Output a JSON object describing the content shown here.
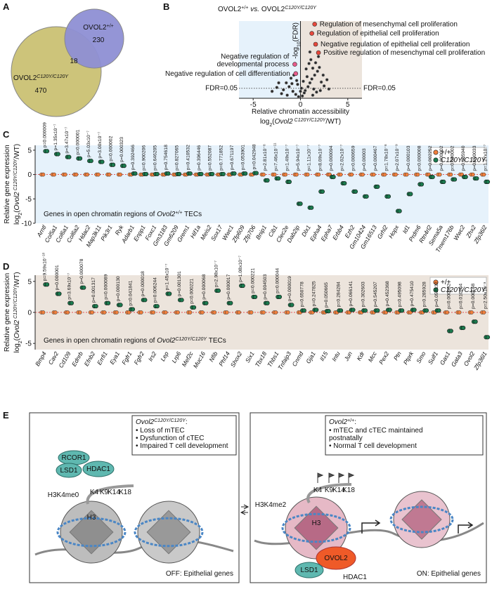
{
  "panel_labels": [
    "A",
    "B",
    "C",
    "D",
    "E"
  ],
  "venn": {
    "sets": [
      {
        "name": [
          "OVOL2",
          {
            "sup": "+/+"
          }
        ],
        "count": 230,
        "color": "#8e8fd4"
      },
      {
        "name": [
          "OVOL2",
          {
            "isup": "C120Y/C120Y"
          }
        ],
        "count": 470,
        "color": "#cdc47a"
      }
    ],
    "overlap": 18
  },
  "volcano": {
    "title": [
      "OVOL2",
      {
        "sup": "+/+"
      },
      " ",
      {
        "i": "vs."
      },
      " OVOL2",
      {
        "isup": "C120Y/C120Y"
      }
    ],
    "y_label": [
      "-log",
      {
        "sub": "10"
      },
      "(FDR)"
    ],
    "x_label": "Relative chromatin accessibility",
    "x_label2": [
      "log",
      {
        "sub": "2"
      },
      "(",
      {
        "i": "Ovol2"
      },
      {
        "isup": " C120Y/C120Y"
      },
      "/WT)"
    ],
    "xlim": [
      -6.5,
      6.5
    ],
    "ylim": [
      0,
      10
    ],
    "xticks": [
      -5,
      0,
      5
    ],
    "threshold": 1.3,
    "threshold_label": "FDR=0.05",
    "points": [
      [
        -0.5,
        0.5
      ],
      [
        0.2,
        0.3
      ],
      [
        0.5,
        1.0
      ],
      [
        0.8,
        1.5
      ],
      [
        1.0,
        2.0
      ],
      [
        1.2,
        2.5
      ],
      [
        1.5,
        3.0
      ],
      [
        1.8,
        3.5
      ],
      [
        2.0,
        4.0
      ],
      [
        0.9,
        4.5
      ],
      [
        1.1,
        5.0
      ],
      [
        0.6,
        3.8
      ],
      [
        1.4,
        1.2
      ],
      [
        2.2,
        2.1
      ],
      [
        2.5,
        1.6
      ],
      [
        1.7,
        0.8
      ],
      [
        -0.8,
        0.9
      ],
      [
        -1.2,
        1.5
      ],
      [
        -1.5,
        2.0
      ],
      [
        -1.0,
        2.6
      ],
      [
        -0.7,
        3.0
      ],
      [
        -1.8,
        1.1
      ],
      [
        -2.0,
        0.6
      ],
      [
        -2.5,
        1.4
      ],
      [
        -3.0,
        0.9
      ],
      [
        -0.3,
        1.8
      ],
      [
        0.3,
        2.2
      ],
      [
        0.7,
        2.8
      ],
      [
        1.3,
        3.9
      ],
      [
        1.6,
        4.6
      ],
      [
        2.4,
        3.0
      ],
      [
        2.8,
        2.4
      ],
      [
        3.0,
        1.2
      ],
      [
        -0.4,
        2.3
      ],
      [
        -1.4,
        0.4
      ],
      [
        0.1,
        1.3
      ],
      [
        1.9,
        5.4
      ],
      [
        1.0,
        6.0
      ],
      [
        0.4,
        0.7
      ],
      [
        2.1,
        1.0
      ],
      [
        -2.3,
        2.0
      ],
      [
        -0.9,
        1.9
      ],
      [
        0.0,
        0.9
      ],
      [
        1.3,
        0.4
      ],
      [
        -0.2,
        0.2
      ]
    ],
    "highlights": [
      {
        "x": 1.5,
        "y": 9.6,
        "label": [
          "Regulation of mesenchymal cell proliferation"
        ],
        "color": "#e8483b"
      },
      {
        "x": 1.2,
        "y": 8.4,
        "label": [
          "Regulation of epithelial cell proliferation"
        ],
        "color": "#e8483b"
      },
      {
        "x": 1.6,
        "y": 7.0,
        "label": [
          "Negative regulation of epithelial cell proliferation"
        ],
        "color": "#e8483b"
      },
      {
        "x": 1.9,
        "y": 5.9,
        "label": [
          "Positive regulation of mesenchymal cell proliferation"
        ],
        "color": "#e8483b"
      },
      {
        "x": -0.6,
        "y": 4.4,
        "label": [
          "Negative regulation of",
          "developmental process"
        ],
        "color": "#e85a8a"
      },
      {
        "x": -0.5,
        "y": 3.2,
        "label": [
          "Negative regulation of cell differentiation"
        ],
        "color": "#e85a8a"
      }
    ]
  },
  "panel_c": {
    "ylim": [
      -10,
      6
    ],
    "yticks": [
      5,
      0,
      -5,
      -10
    ],
    "background": "#e6f2fb",
    "y_label": "Relative gene expression",
    "y_label2": [
      "log",
      {
        "sub": "2"
      },
      "(",
      {
        "i": "Ovol2"
      },
      {
        "isup": " C120Y/C120Y"
      },
      "/WT)"
    ],
    "legend": [
      {
        "label": [
          "+/+"
        ],
        "color": "#f07f3c"
      },
      {
        "label": [
          {
            "i": "C120Y/C120Y"
          }
        ],
        "color": "#1b7a4e"
      }
    ],
    "note": [
      "Genes in open chromatin regions of ",
      {
        "i": "Ovol2"
      },
      {
        "isup": "+/+"
      },
      " TECs"
    ],
    "groups": [
      {
        "color": "#e0242b",
        "genes": [
          "Arntl",
          "Col5a1",
          "Col6a1",
          "Col6a2",
          "Hdac2",
          "Map3k11",
          "Pik3r1",
          "Ryk"
        ],
        "wt": [
          0,
          0,
          0,
          0,
          0,
          0,
          0,
          0
        ],
        "mut": [
          4.8,
          4.2,
          3.6,
          3.3,
          2.8,
          2.6,
          2.0,
          1.8
        ],
        "p": [
          "p=0.000009",
          "p=1.35x10⁻⁷",
          "p=3.47x10⁻⁷",
          "p=0.000001",
          "p=5.03x10⁻⁷",
          "p=3.00x10⁻⁷",
          "p=0.000002",
          "p=0.000323"
        ]
      },
      {
        "color": "#111111",
        "genes": [
          "Adarb1",
          "Enpp1",
          "Foxc1",
          "Gm3183",
          "Gm6209",
          "Grem1",
          "Hif1a",
          "Meis2",
          "Sox17",
          "Wwc1",
          "Zfp609",
          "Zfp706"
        ],
        "wt": [
          0,
          0,
          0,
          0,
          0,
          0,
          0,
          0,
          0,
          0,
          0,
          0
        ],
        "mut": [
          0.2,
          0.1,
          0.1,
          0.2,
          0.1,
          0.2,
          0.1,
          0.1,
          0.1,
          0.2,
          0.2,
          0.3
        ],
        "p": [
          "p=0.392466",
          "p=0.900206",
          "p=0.646205",
          "p=0.754618",
          "p=0.827065",
          "p=0.410532",
          "p=0.396446",
          "p=0.552087",
          "p=0.771852",
          "p=0.671197",
          "p=0.053901",
          "p=0.042948"
        ]
      },
      {
        "color": "#1b7a4e",
        "genes": [
          "Bnip1",
          "Cib1",
          "Clec2e",
          "Dab2ip",
          "Dlx1",
          "Epha4",
          "Epha7",
          "Erbb4",
          "Ezh2",
          "Gm10424",
          "Gm16513",
          "Grhl2",
          "Hopx",
          "Id1",
          "Prdm6",
          "Rtn4rl2",
          "Sema5a",
          "Tmem176b",
          "Wwc2",
          "Zhx2",
          "Zfp36l2"
        ],
        "wt": [
          0,
          0,
          0,
          0,
          0,
          0,
          0,
          0,
          0,
          0,
          0,
          0,
          0,
          0,
          0,
          0,
          0,
          0,
          0,
          0,
          0
        ],
        "mut": [
          -1.2,
          -0.8,
          -1.5,
          -6.0,
          -6.8,
          -3.5,
          -0.5,
          -1.8,
          -3.5,
          -4.5,
          -2.5,
          -4.5,
          -7.5,
          -4.0,
          -2.0,
          -0.5,
          -1.5,
          -1.0,
          -0.5,
          -0.8,
          -1.5
        ],
        "p": [
          "p=2.81x10⁻⁸",
          "p=7.46x10⁻¹¹",
          "p=1.49x10⁻⁷",
          "p=5.94x10⁻⁷",
          "p=1.11x10⁻⁷",
          "p=8.09x10⁻⁷",
          "p=0.000094",
          "p=2.02x10⁻⁷",
          "p=0.000659",
          "p=0.00003",
          "p=0.000467",
          "p=1.78x10⁻⁸",
          "p=2.07x10⁻⁹",
          "p=0.000103",
          "p=0.000008",
          "p=0.002252",
          "p=0.000002",
          "p=0.000002",
          "p=0.005940",
          "p=0.000033",
          "p=1.27x10⁻⁷"
        ]
      }
    ]
  },
  "panel_d": {
    "ylim": [
      -6,
      6
    ],
    "yticks": [
      5,
      0,
      -5
    ],
    "background": "#ece4dc",
    "y_label": "Relative gene expression",
    "y_label2": [
      "log",
      {
        "sub": "2"
      },
      "(",
      {
        "i": "Ovol2"
      },
      {
        "isup": " C120Y/C120Y"
      },
      "/WT)"
    ],
    "legend": [
      {
        "label": [
          "+/+"
        ],
        "color": "#f07f3c"
      },
      {
        "label": [
          {
            "i": "C120Y/C120Y"
          }
        ],
        "color": "#1b7a4e"
      }
    ],
    "note": [
      "Genes in open chromatin regions of ",
      {
        "i": "Ovol2"
      },
      {
        "isup": "C120Y/C120Y"
      },
      " TECs"
    ],
    "groups": [
      {
        "color": "#e0242b",
        "genes": [
          "Bmp4",
          "Cav2",
          "Cd109",
          "Ednrb",
          "Efnb2",
          "Errfi1",
          "Eya1",
          "Fgfr1",
          "Fgfr2",
          "Irs2",
          "Lep",
          "Lrp6",
          "Mef2c",
          "Muc16",
          "Nfib",
          "Phf14",
          "Shox2",
          "Six1",
          "Tbx18",
          "Thbs1",
          "Tnfaip3"
        ],
        "wt": [
          0,
          0,
          0,
          0,
          0,
          0,
          0,
          0,
          0,
          0,
          0,
          0,
          0,
          0,
          0,
          0,
          0,
          0,
          0,
          0,
          0
        ],
        "mut": [
          4.5,
          3.0,
          1.5,
          4.0,
          1.0,
          1.5,
          1.2,
          0.5,
          2.0,
          1.0,
          3.0,
          2.0,
          0.8,
          1.5,
          3.5,
          1.5,
          4.3,
          2.5,
          1.5,
          2.5,
          1.2
        ],
        "p": [
          "p=9.59x10⁻¹⁰",
          "p=0.000001",
          "p=3.69x10⁻⁷",
          "p=0.000078",
          "p=0.001317",
          "p=0.000089",
          "p=0.000130",
          "p=0.041841",
          "p=0.000018",
          "p=0.006244",
          "p=1.45x10⁻⁷",
          "p=0.001301",
          "p=0.000221",
          "p=0.000068",
          "p=2.98x10⁻⁷",
          "p=0.000017",
          "p=1.08x10⁻⁷",
          "p=0.000221",
          "p=0.004503",
          "p=0.000044",
          "p=0.000019"
        ]
      },
      {
        "color": "#111111",
        "genes": [
          "Cnmd",
          "Gja1",
          "Il15",
          "Intu",
          "Jun",
          "Kdr",
          "Mcc",
          "Pex2",
          "Ptn",
          "Ptprk",
          "Smo",
          "Sulf1"
        ],
        "wt": [
          0,
          0,
          0,
          0,
          0,
          0,
          0,
          0,
          0,
          0,
          0,
          0
        ],
        "mut": [
          0.3,
          0.4,
          0.2,
          0.3,
          0.4,
          0.3,
          0.3,
          0.4,
          0.3,
          0.4,
          0.3,
          0.3
        ],
        "p": [
          "p=0.650778",
          "p=0.247825",
          "p=0.050665",
          "p=0.284284",
          "p=0.066141",
          "p=0.302603",
          "p=0.545207",
          "p=0.452368",
          "p=0.495098",
          "p=0.475410",
          "p=0.285928",
          "p=0.052332"
        ]
      },
      {
        "color": "#1b7a4e",
        "genes": [
          "Gas1",
          "Gata3",
          "Ovol2",
          "Zfp36l1"
        ],
        "wt": [
          0,
          0,
          0,
          0
        ],
        "mut": [
          -3.0,
          -2.5,
          -1.5,
          -4.0
        ],
        "p": [
          "p=0.000002",
          "p=0.010164",
          "p=0.000148",
          "p=2.50x10⁻⁹"
        ]
      }
    ]
  },
  "diagram": {
    "left": {
      "title": [
        {
          "i": "Ovol2"
        },
        {
          "isup": "C120Y/C120Y"
        },
        ":"
      ],
      "bullets": [
        "• Loss of mTEC",
        "• Dysfunction of cTEC",
        "• Impaired T cell development"
      ],
      "proteins": [
        "RCOR1",
        "LSD1",
        "HDAC1"
      ],
      "mark": "H3K4me0",
      "residues": [
        "K4",
        "K9",
        "K14",
        "K18"
      ],
      "histone": "H3",
      "state": "OFF: Epithelial genes"
    },
    "right": {
      "title": [
        {
          "i": "Ovol2"
        },
        {
          "sup": "+/+"
        },
        ":"
      ],
      "bullets": [
        "• mTEC and cTEC maintained",
        "  postnatally",
        "• Normal T cell development"
      ],
      "proteins": [
        "OVOL2",
        "LSD1",
        "HDAC1"
      ],
      "mark": "H3K4me2",
      "residues": [
        "K4",
        "K9",
        "K14",
        "K18"
      ],
      "histone": "H3",
      "state": "ON: Epithelial genes"
    }
  }
}
